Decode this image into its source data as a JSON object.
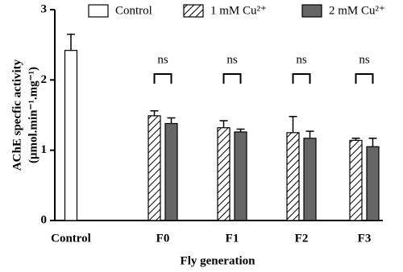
{
  "chart_data": {
    "type": "bar",
    "y_label": [
      "AChE specfic activity",
      "(μmol.min⁻¹.mg⁻¹)"
    ],
    "x_label": "Fly generation",
    "categories": [
      "Control",
      "F0",
      "F1",
      "F2",
      "F3"
    ],
    "series": [
      {
        "name": "Control",
        "color": "#ffffff",
        "hatch": false,
        "values": [
          2.42,
          null,
          null,
          null,
          null
        ],
        "errors": [
          0.23,
          null,
          null,
          null,
          null
        ]
      },
      {
        "name": "1 mM Cu²⁺",
        "color": "#ffffff",
        "hatch": true,
        "values": [
          null,
          1.49,
          1.32,
          1.25,
          1.14
        ],
        "errors": [
          null,
          0.07,
          0.1,
          0.23,
          0.03
        ]
      },
      {
        "name": "2 mM Cu²⁺",
        "color": "#666666",
        "hatch": false,
        "values": [
          null,
          1.38,
          1.26,
          1.17,
          1.05
        ],
        "errors": [
          null,
          0.08,
          0.04,
          0.1,
          0.12
        ]
      }
    ],
    "annotations": [
      null,
      "ns",
      "ns",
      "ns",
      "ns"
    ],
    "ylim": [
      0,
      3
    ],
    "yticks": [
      0,
      1,
      2,
      3
    ],
    "grid": false
  }
}
